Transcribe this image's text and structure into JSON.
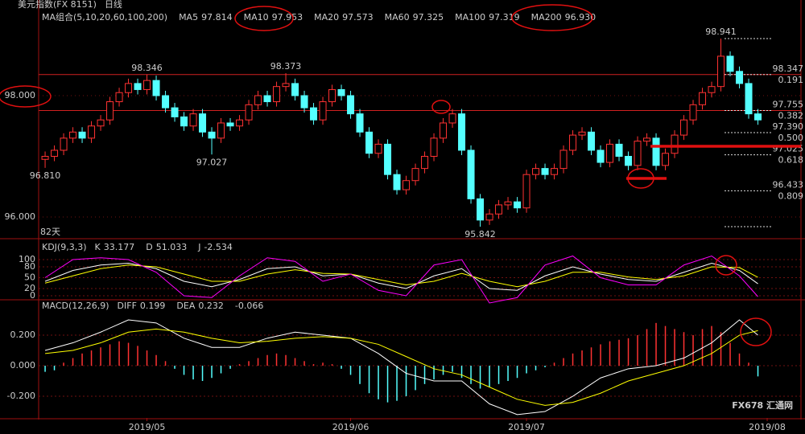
{
  "chart_data": [
    {
      "type": "candlestick",
      "title": "美元指数(FX 8151)",
      "period": "日线",
      "ma_label": "MA组合(5,10,20,60,100,200)",
      "ma": [
        {
          "name": "MA5",
          "value": 97.814,
          "color": "#ffffff"
        },
        {
          "name": "MA10",
          "value": 97.953,
          "color": "#ffff00"
        },
        {
          "name": "MA20",
          "value": 97.573,
          "color": "#ff00ff"
        },
        {
          "name": "MA60",
          "value": 97.325,
          "color": "#00e000"
        },
        {
          "name": "MA100",
          "value": 97.319,
          "color": "#aaaaaa"
        },
        {
          "name": "MA200",
          "value": {
            "value": 96.93,
            "label": "96.930"
          },
          "color": "#ff4040"
        }
      ],
      "days_label": "82天",
      "open": [
        96.95,
        97.0,
        97.1,
        97.3,
        97.4,
        97.3,
        97.5,
        97.6,
        97.9,
        98.05,
        98.2,
        98.1,
        98.25,
        98.0,
        97.8,
        97.65,
        97.5,
        97.7,
        97.4,
        97.3,
        97.55,
        97.5,
        97.6,
        97.85,
        98.0,
        97.9,
        98.15,
        98.2,
        98.0,
        97.8,
        97.6,
        97.9,
        98.1,
        98.0,
        97.7,
        97.4,
        97.05,
        97.2,
        96.7,
        96.45,
        96.6,
        96.8,
        97.0,
        97.3,
        97.55,
        97.7,
        97.1,
        96.3,
        95.95,
        96.05,
        96.2,
        96.25,
        96.15,
        96.7,
        96.8,
        96.7,
        96.8,
        97.1,
        97.35,
        97.4,
        97.1,
        96.9,
        97.2,
        97.0,
        96.85,
        97.25,
        97.3,
        96.85,
        97.05,
        97.35,
        97.6,
        97.85,
        98.05,
        98.15,
        98.65,
        98.4,
        98.2,
        97.7
      ],
      "high": [
        97.08,
        97.18,
        97.38,
        97.48,
        97.48,
        97.58,
        97.68,
        97.98,
        98.13,
        98.28,
        98.28,
        98.35,
        98.33,
        98.08,
        97.88,
        97.73,
        97.78,
        97.78,
        97.48,
        97.63,
        97.63,
        97.68,
        97.93,
        98.08,
        98.08,
        98.23,
        98.37,
        98.28,
        98.08,
        97.88,
        97.98,
        98.18,
        98.18,
        98.08,
        97.78,
        97.48,
        97.28,
        97.28,
        96.78,
        96.68,
        96.88,
        97.08,
        97.38,
        97.63,
        97.78,
        97.78,
        97.18,
        96.38,
        96.13,
        96.28,
        96.33,
        96.33,
        96.78,
        96.88,
        96.88,
        96.88,
        97.18,
        97.43,
        97.48,
        97.48,
        97.18,
        97.28,
        97.28,
        97.08,
        97.33,
        97.38,
        97.38,
        97.13,
        97.43,
        97.68,
        97.93,
        98.13,
        98.23,
        98.94,
        98.73,
        98.48,
        98.28,
        97.78
      ],
      "low": [
        96.81,
        96.92,
        97.02,
        97.22,
        97.22,
        97.22,
        97.42,
        97.52,
        97.82,
        97.97,
        98.02,
        98.02,
        97.92,
        97.72,
        97.57,
        97.42,
        97.42,
        97.32,
        97.03,
        97.22,
        97.42,
        97.42,
        97.52,
        97.77,
        97.82,
        97.82,
        98.07,
        97.92,
        97.72,
        97.52,
        97.52,
        97.82,
        97.92,
        97.62,
        97.32,
        96.97,
        96.97,
        96.62,
        96.37,
        96.37,
        96.52,
        96.72,
        96.92,
        97.22,
        97.47,
        97.02,
        96.22,
        95.84,
        95.87,
        95.97,
        96.12,
        96.07,
        96.07,
        96.62,
        96.62,
        96.62,
        96.72,
        97.02,
        97.27,
        97.02,
        96.82,
        96.82,
        96.92,
        96.77,
        96.77,
        97.17,
        96.77,
        96.77,
        96.97,
        97.27,
        97.52,
        97.77,
        97.97,
        98.07,
        98.32,
        98.12,
        97.62,
        97.52
      ],
      "close": [
        97.0,
        97.1,
        97.3,
        97.4,
        97.3,
        97.5,
        97.6,
        97.9,
        98.05,
        98.2,
        98.1,
        98.25,
        98.0,
        97.8,
        97.65,
        97.5,
        97.7,
        97.4,
        97.3,
        97.55,
        97.5,
        97.6,
        97.85,
        98.0,
        97.9,
        98.15,
        98.2,
        98.0,
        97.8,
        97.6,
        97.9,
        98.1,
        98.0,
        97.7,
        97.4,
        97.05,
        97.2,
        96.7,
        96.45,
        96.6,
        96.8,
        97.0,
        97.3,
        97.55,
        97.7,
        97.1,
        96.3,
        95.95,
        96.05,
        96.2,
        96.25,
        96.15,
        96.7,
        96.8,
        96.7,
        96.8,
        97.1,
        97.35,
        97.4,
        97.1,
        96.9,
        97.2,
        97.0,
        96.85,
        97.25,
        97.3,
        96.85,
        97.05,
        97.35,
        97.6,
        97.85,
        98.05,
        98.15,
        98.65,
        98.4,
        98.2,
        97.7,
        97.6
      ],
      "up_color": "#ff3232",
      "down_color": "#54ffff",
      "high_labels": [
        98.346,
        98.373,
        98.941
      ],
      "low_labels": [
        {
          "value": 96.81,
          "label": "96.810"
        },
        97.027,
        95.842
      ],
      "hlines": [
        98.347,
        97.755
      ],
      "hline_color": "#d02020",
      "fib_range": [
        95.842,
        98.941
      ],
      "fib_levels": [
        {
          "price": 98.347,
          "ratio": 0.191
        },
        {
          "price": 97.755,
          "ratio": 0.382
        },
        {
          "price": {
            "value": 97.39,
            "label": "97.390"
          },
          "ratio": {
            "value": 0.5,
            "label": "0.500"
          }
        },
        {
          "price": 97.025,
          "ratio": 0.618
        },
        {
          "price": 96.433,
          "ratio": 0.809
        }
      ],
      "xlim": [
        -0.7,
        81.65
      ],
      "ylim": [
        95.656,
        99.417
      ],
      "yticks": [
        {
          "value": 96,
          "label": "96.000"
        },
        {
          "value": 98,
          "label": "98.000"
        }
      ]
    },
    {
      "type": "line",
      "title": "KDJ(9,3,3)",
      "x": [
        0,
        3,
        6,
        9,
        12,
        15,
        18,
        21,
        24,
        27,
        30,
        33,
        36,
        39,
        42,
        45,
        48,
        51,
        54,
        57,
        60,
        63,
        66,
        69,
        72,
        75,
        77
      ],
      "series": [
        {
          "name": "K",
          "last": 33.177,
          "color": "#ffffff",
          "values": [
            40,
            70,
            85,
            90,
            75,
            40,
            25,
            45,
            75,
            80,
            55,
            60,
            35,
            20,
            55,
            75,
            20,
            15,
            55,
            80,
            60,
            45,
            40,
            65,
            90,
            70,
            33.18
          ]
        },
        {
          "name": "D",
          "last": 51.033,
          "color": "#ffff00",
          "values": [
            35,
            55,
            75,
            85,
            80,
            60,
            40,
            40,
            60,
            72,
            62,
            60,
            45,
            30,
            40,
            62,
            40,
            25,
            40,
            65,
            65,
            52,
            45,
            55,
            80,
            78,
            51.03
          ]
        },
        {
          "name": "J",
          "last": -2.534,
          "color": "#ff00ff",
          "values": [
            50,
            100,
            105,
            100,
            65,
            0,
            -5,
            55,
            105,
            95,
            40,
            60,
            15,
            0,
            85,
            100,
            -20,
            -5,
            85,
            110,
            50,
            30,
            30,
            85,
            110,
            55,
            -2.53
          ]
        }
      ],
      "xlim": [
        -0.7,
        81.65
      ],
      "ylim": [
        -8.9,
        151.1
      ],
      "yticks": [
        0,
        20,
        50,
        80,
        100
      ]
    },
    {
      "type": "macd",
      "title": "MACD(12,26,9)",
      "x": [
        0,
        3,
        6,
        9,
        12,
        15,
        18,
        21,
        24,
        27,
        30,
        33,
        36,
        39,
        42,
        45,
        48,
        51,
        54,
        57,
        60,
        63,
        66,
        69,
        72,
        75,
        77
      ],
      "series": [
        {
          "name": "DIFF",
          "last": 0.199,
          "color": "#ffffff",
          "values": [
            0.1,
            0.15,
            0.22,
            0.3,
            0.28,
            0.18,
            0.12,
            0.12,
            0.18,
            0.22,
            0.2,
            0.18,
            0.08,
            -0.05,
            -0.1,
            -0.1,
            -0.25,
            -0.32,
            -0.3,
            -0.2,
            -0.08,
            -0.02,
            0.0,
            0.05,
            0.15,
            0.3,
            0.2
          ]
        },
        {
          "name": "DEA",
          "last": 0.232,
          "color": "#ffff00",
          "values": [
            0.08,
            0.1,
            0.15,
            0.22,
            0.24,
            0.22,
            0.18,
            0.15,
            0.16,
            0.18,
            0.19,
            0.18,
            0.14,
            0.06,
            -0.02,
            -0.06,
            -0.14,
            -0.22,
            -0.26,
            -0.24,
            -0.18,
            -0.1,
            -0.05,
            0.0,
            0.08,
            0.2,
            0.23
          ]
        }
      ],
      "histogram": {
        "last": -0.066,
        "up_color": "#ff3232",
        "down_color": "#54ffff",
        "values": [
          -0.04,
          -0.03,
          0.02,
          0.05,
          0.08,
          0.1,
          0.12,
          0.14,
          0.16,
          0.15,
          0.13,
          0.1,
          0.07,
          0.03,
          -0.02,
          -0.06,
          -0.09,
          -0.1,
          -0.08,
          -0.05,
          -0.02,
          0.01,
          0.03,
          0.05,
          0.07,
          0.08,
          0.07,
          0.05,
          0.03,
          0.01,
          0.02,
          0.01,
          -0.02,
          -0.06,
          -0.12,
          -0.18,
          -0.22,
          -0.24,
          -0.23,
          -0.2,
          -0.16,
          -0.12,
          -0.09,
          -0.06,
          -0.04,
          -0.08,
          -0.12,
          -0.15,
          -0.14,
          -0.12,
          -0.1,
          -0.08,
          -0.05,
          -0.03,
          -0.01,
          0.02,
          0.05,
          0.08,
          0.1,
          0.12,
          0.14,
          0.16,
          0.17,
          0.18,
          0.2,
          0.24,
          0.28,
          0.26,
          0.24,
          0.22,
          0.2,
          0.24,
          0.26,
          0.22,
          0.15,
          0.08,
          0.02,
          -0.07
        ]
      },
      "xlim": [
        -0.7,
        81.65
      ],
      "ylim": [
        -0.342,
        0.416
      ],
      "yticks": [
        {
          "value": -0.2,
          "label": "-0.200"
        },
        {
          "value": 0,
          "label": "0.000"
        },
        {
          "value": 0.2,
          "label": "0.200"
        }
      ],
      "xticks": [
        {
          "value": 11,
          "label": "2019/05"
        },
        {
          "value": 33,
          "label": "2019/06"
        },
        {
          "value": 52,
          "label": "2019/07"
        },
        {
          "value": 78,
          "label": "2019/08"
        }
      ],
      "watermark": "FX678 汇通网"
    }
  ]
}
